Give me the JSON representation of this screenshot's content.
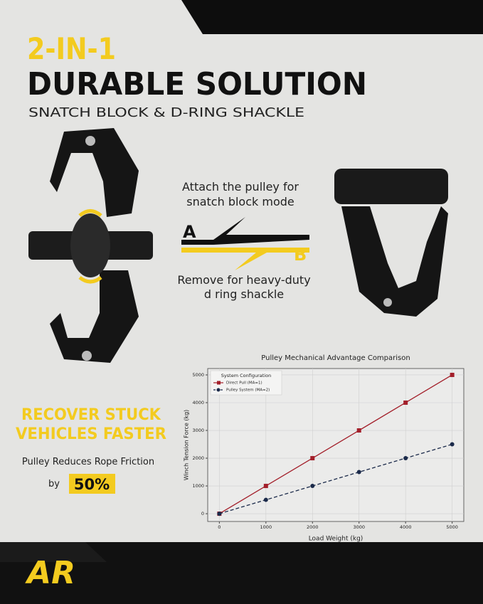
{
  "header": {
    "kicker": "2-IN-1",
    "title": "DURABLE SOLUTION",
    "subtitle": "SNATCH BLOCK & D-RING SHACKLE"
  },
  "modes": {
    "attach": [
      "Attach the pulley for",
      "snatch block mode"
    ],
    "a": "A",
    "b": "B",
    "remove": [
      "Remove for heavy-duty",
      "d ring shackle"
    ]
  },
  "benefit": {
    "headline": [
      "RECOVER STUCK",
      "VEHICLES FASTER"
    ],
    "text": "Pulley Reduces Rope Friction",
    "by": "by",
    "highlight": "50%"
  },
  "logo": "AR",
  "chart_data": {
    "type": "line",
    "title": "Pulley  Mechanical Advantage Comparison",
    "x_label": "Load  Weight (kg)",
    "y_label": "Winch  Tension Force (kg)",
    "legend_title": "System Configuration",
    "legend": "upper left",
    "grid": true,
    "x": [
      0,
      1000,
      2000,
      3000,
      4000,
      5000
    ],
    "series": [
      {
        "name": "Direct Pull (MA=1)",
        "color": "#a31f2a",
        "marker": "square",
        "dash": false,
        "values": [
          0,
          1000,
          2000,
          3000,
          4000,
          5000
        ]
      },
      {
        "name": "Pulley System (MA=2)",
        "color": "#1b2a4a",
        "marker": "circle",
        "dash": true,
        "values": [
          0,
          500,
          1000,
          1500,
          2000,
          2500
        ]
      }
    ],
    "xlim": [
      -250,
      5250
    ],
    "ylim": [
      -280,
      5230
    ],
    "xticks": [
      0,
      1000,
      2000,
      3000,
      4000,
      5000
    ],
    "yticks": [
      0,
      1000,
      2000,
      3000,
      4000,
      5000
    ]
  }
}
